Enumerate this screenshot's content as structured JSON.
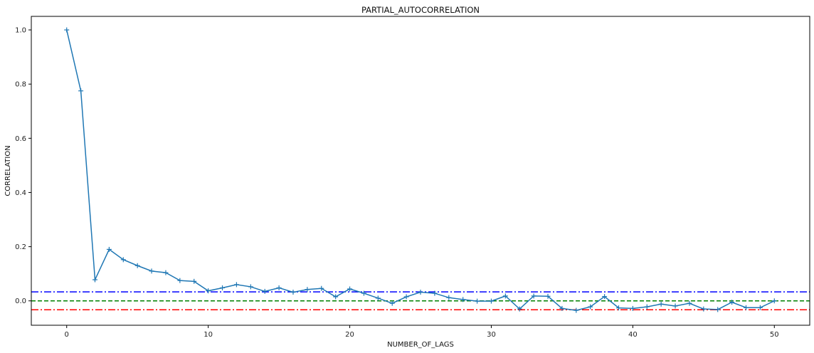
{
  "chart_data": {
    "type": "line",
    "title": "PARTIAL_AUTOCORRELATION",
    "xlabel": "NUMBER_OF_LAGS",
    "ylabel": "CORRELATION",
    "xlim": [
      -2.5,
      52.5
    ],
    "ylim": [
      -0.09,
      1.05
    ],
    "x_ticks": [
      0,
      10,
      20,
      30,
      40,
      50
    ],
    "y_ticks": [
      0.0,
      0.2,
      0.4,
      0.6,
      0.8,
      1.0
    ],
    "y_tick_labels": [
      "0.0",
      "0.2",
      "0.4",
      "0.6",
      "0.8",
      "1.0"
    ],
    "grid": false,
    "series": [
      {
        "color": "#1f77b4",
        "marker": "plus",
        "x": [
          0,
          1,
          2,
          3,
          4,
          5,
          6,
          7,
          8,
          9,
          10,
          11,
          12,
          13,
          14,
          15,
          16,
          17,
          18,
          19,
          20,
          21,
          22,
          23,
          24,
          25,
          26,
          27,
          28,
          29,
          30,
          31,
          32,
          33,
          34,
          35,
          36,
          37,
          38,
          39,
          40,
          41,
          42,
          43,
          44,
          45,
          46,
          47,
          48,
          49,
          50
        ],
        "y": [
          1.0,
          0.775,
          0.078,
          0.19,
          0.152,
          0.13,
          0.11,
          0.104,
          0.075,
          0.072,
          0.037,
          0.048,
          0.06,
          0.052,
          0.035,
          0.048,
          0.032,
          0.042,
          0.046,
          0.015,
          0.044,
          0.028,
          0.01,
          -0.009,
          0.015,
          0.032,
          0.028,
          0.012,
          0.005,
          -0.001,
          -0.001,
          0.018,
          -0.03,
          0.018,
          0.017,
          -0.028,
          -0.035,
          -0.022,
          0.016,
          -0.026,
          -0.028,
          -0.022,
          -0.012,
          -0.019,
          -0.009,
          -0.03,
          -0.032,
          -0.005,
          -0.025,
          -0.025,
          0.0
        ]
      }
    ],
    "reference_lines": [
      {
        "name": "upper",
        "y": 0.033,
        "color": "#0000ff",
        "style": "dashdot"
      },
      {
        "name": "zero",
        "y": 0.0,
        "color": "#008000",
        "style": "dashed"
      },
      {
        "name": "lower",
        "y": -0.033,
        "color": "#ff0000",
        "style": "dashdot"
      }
    ]
  }
}
